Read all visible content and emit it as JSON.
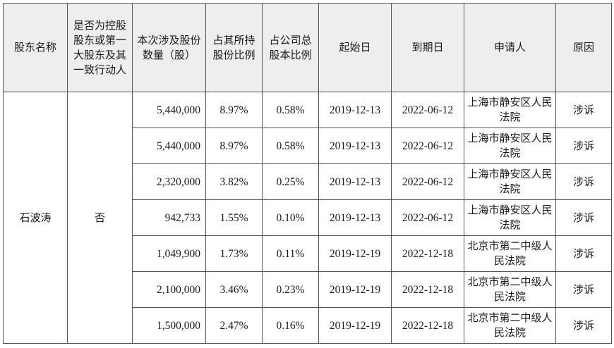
{
  "headers": [
    "股东名称",
    "是否为控股股东或第一大股东及其一致行动人",
    "本次涉及股份数量（股）",
    "占其所持股份比例",
    "占公司总股本比例",
    "起始日",
    "到期日",
    "申请人",
    "原因"
  ],
  "shareholder": "石波涛",
  "is_controlling": "否",
  "rows": [
    {
      "shares": "5,440,000",
      "pct_held": "8.97%",
      "pct_total": "0.58%",
      "start": "2019-12-13",
      "end": "2022-06-12",
      "applicant": "上海市静安区人民法院",
      "reason": "涉诉"
    },
    {
      "shares": "5,440,000",
      "pct_held": "8.97%",
      "pct_total": "0.58%",
      "start": "2019-12-13",
      "end": "2022-06-12",
      "applicant": "上海市静安区人民法院",
      "reason": "涉诉"
    },
    {
      "shares": "2,320,000",
      "pct_held": "3.82%",
      "pct_total": "0.25%",
      "start": "2019-12-13",
      "end": "2022-06-12",
      "applicant": "上海市静安区人民法院",
      "reason": "涉诉"
    },
    {
      "shares": "942,733",
      "pct_held": "1.55%",
      "pct_total": "0.10%",
      "start": "2019-12-13",
      "end": "2022-06-12",
      "applicant": "上海市静安区人民法院",
      "reason": "涉诉"
    },
    {
      "shares": "1,049,900",
      "pct_held": "1.73%",
      "pct_total": "0.11%",
      "start": "2019-12-19",
      "end": "2022-12-18",
      "applicant": "北京市第二中级人民法院",
      "reason": "涉诉"
    },
    {
      "shares": "2,100,000",
      "pct_held": "3.46%",
      "pct_total": "0.23%",
      "start": "2019-12-19",
      "end": "2022-12-18",
      "applicant": "北京市第二中级人民法院",
      "reason": "涉诉"
    },
    {
      "shares": "1,500,000",
      "pct_held": "2.47%",
      "pct_total": "0.16%",
      "start": "2019-12-19",
      "end": "2022-12-18",
      "applicant": "北京市第二中级人民法院",
      "reason": "涉诉"
    }
  ]
}
